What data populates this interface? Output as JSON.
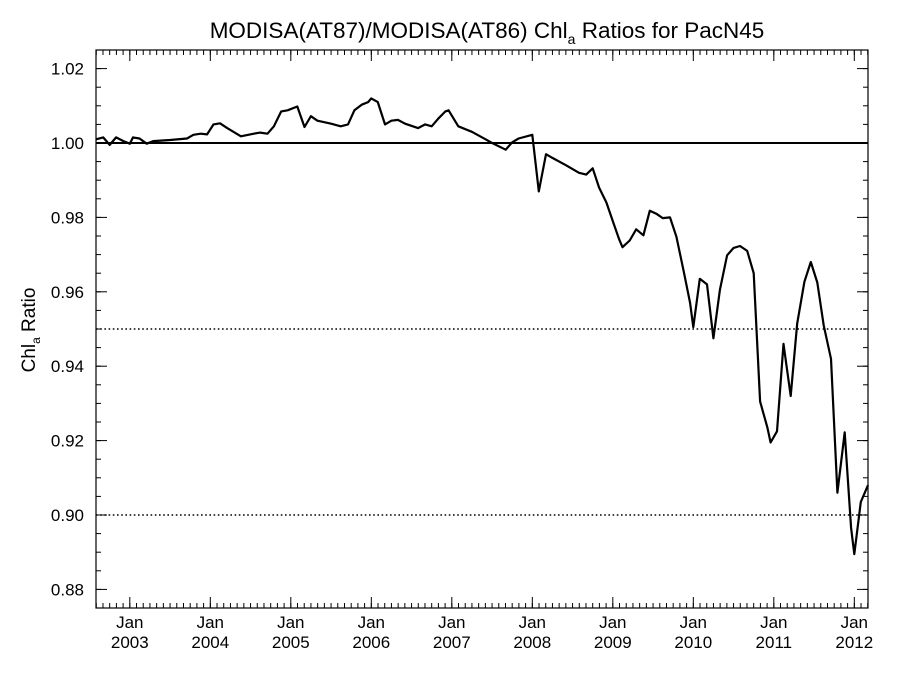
{
  "chart_data": {
    "type": "line",
    "title_main": "MODISA(AT87)/MODISA(AT86)  Chl",
    "title_sub": "a",
    "title_rest": " Ratios for PacN45",
    "ylabel_main": "Chl",
    "ylabel_sub": "a",
    "ylabel_rest": " Ratio",
    "xlim": [
      2002.58,
      2012.17
    ],
    "ylim": [
      0.875,
      1.025
    ],
    "yticks": [
      {
        "v": 0.88,
        "label": "0.88"
      },
      {
        "v": 0.9,
        "label": "0.90"
      },
      {
        "v": 0.92,
        "label": "0.92"
      },
      {
        "v": 0.94,
        "label": "0.94"
      },
      {
        "v": 0.96,
        "label": "0.96"
      },
      {
        "v": 0.98,
        "label": "0.98"
      },
      {
        "v": 1.0,
        "label": "1.00"
      },
      {
        "v": 1.02,
        "label": "1.02"
      }
    ],
    "xticks": [
      {
        "v": 2003,
        "month": "Jan",
        "year": "2003"
      },
      {
        "v": 2004,
        "month": "Jan",
        "year": "2004"
      },
      {
        "v": 2005,
        "month": "Jan",
        "year": "2005"
      },
      {
        "v": 2006,
        "month": "Jan",
        "year": "2006"
      },
      {
        "v": 2007,
        "month": "Jan",
        "year": "2007"
      },
      {
        "v": 2008,
        "month": "Jan",
        "year": "2008"
      },
      {
        "v": 2009,
        "month": "Jan",
        "year": "2009"
      },
      {
        "v": 2010,
        "month": "Jan",
        "year": "2010"
      },
      {
        "v": 2011,
        "month": "Jan",
        "year": "2011"
      },
      {
        "v": 2012,
        "month": "Jan",
        "year": "2012"
      }
    ],
    "reference_lines": [
      {
        "y": 1.0,
        "style": "solid"
      },
      {
        "y": 0.95,
        "style": "dotted"
      },
      {
        "y": 0.9,
        "style": "dotted"
      }
    ],
    "series": [
      {
        "points": [
          [
            2002.58,
            1.001
          ],
          [
            2002.67,
            1.0015
          ],
          [
            2002.75,
            0.9995
          ],
          [
            2002.83,
            1.0015
          ],
          [
            2002.92,
            1.0005
          ],
          [
            2003.0,
            0.9998
          ],
          [
            2003.04,
            1.0015
          ],
          [
            2003.12,
            1.0012
          ],
          [
            2003.21,
            0.9998
          ],
          [
            2003.29,
            1.0005
          ],
          [
            2003.5,
            1.0008
          ],
          [
            2003.71,
            1.0012
          ],
          [
            2003.79,
            1.0022
          ],
          [
            2003.88,
            1.0025
          ],
          [
            2003.96,
            1.0023
          ],
          [
            2004.04,
            1.005
          ],
          [
            2004.12,
            1.0053
          ],
          [
            2004.21,
            1.004
          ],
          [
            2004.38,
            1.0018
          ],
          [
            2004.54,
            1.0025
          ],
          [
            2004.62,
            1.0028
          ],
          [
            2004.71,
            1.0025
          ],
          [
            2004.79,
            1.0045
          ],
          [
            2004.88,
            1.0085
          ],
          [
            2004.96,
            1.0088
          ],
          [
            2005.08,
            1.0098
          ],
          [
            2005.17,
            1.0043
          ],
          [
            2005.25,
            1.0072
          ],
          [
            2005.33,
            1.006
          ],
          [
            2005.5,
            1.0052
          ],
          [
            2005.62,
            1.0045
          ],
          [
            2005.71,
            1.005
          ],
          [
            2005.79,
            1.0088
          ],
          [
            2005.88,
            1.0103
          ],
          [
            2005.96,
            1.011
          ],
          [
            2006.0,
            1.012
          ],
          [
            2006.08,
            1.011
          ],
          [
            2006.17,
            1.005
          ],
          [
            2006.25,
            1.006
          ],
          [
            2006.33,
            1.0062
          ],
          [
            2006.42,
            1.0052
          ],
          [
            2006.58,
            1.004
          ],
          [
            2006.67,
            1.005
          ],
          [
            2006.75,
            1.0045
          ],
          [
            2006.83,
            1.0065
          ],
          [
            2006.92,
            1.0085
          ],
          [
            2006.96,
            1.0088
          ],
          [
            2007.08,
            1.0045
          ],
          [
            2007.25,
            1.003
          ],
          [
            2007.42,
            1.001
          ],
          [
            2007.5,
            1.0
          ],
          [
            2007.67,
            0.9982
          ],
          [
            2007.75,
            1.0002
          ],
          [
            2007.83,
            1.0012
          ],
          [
            2008.0,
            1.0022
          ],
          [
            2008.08,
            0.987
          ],
          [
            2008.17,
            0.997
          ],
          [
            2008.25,
            0.996
          ],
          [
            2008.42,
            0.994
          ],
          [
            2008.58,
            0.992
          ],
          [
            2008.67,
            0.9915
          ],
          [
            2008.75,
            0.9932
          ],
          [
            2008.83,
            0.988
          ],
          [
            2008.92,
            0.984
          ],
          [
            2009.0,
            0.979
          ],
          [
            2009.08,
            0.974
          ],
          [
            2009.12,
            0.972
          ],
          [
            2009.21,
            0.9738
          ],
          [
            2009.29,
            0.9768
          ],
          [
            2009.38,
            0.9752
          ],
          [
            2009.46,
            0.9818
          ],
          [
            2009.54,
            0.981
          ],
          [
            2009.62,
            0.9798
          ],
          [
            2009.71,
            0.98
          ],
          [
            2009.79,
            0.9748
          ],
          [
            2009.88,
            0.9655
          ],
          [
            2009.96,
            0.957
          ],
          [
            2010.0,
            0.9505
          ],
          [
            2010.08,
            0.9635
          ],
          [
            2010.17,
            0.962
          ],
          [
            2010.25,
            0.9475
          ],
          [
            2010.33,
            0.9605
          ],
          [
            2010.42,
            0.9698
          ],
          [
            2010.5,
            0.9718
          ],
          [
            2010.58,
            0.9723
          ],
          [
            2010.67,
            0.971
          ],
          [
            2010.75,
            0.965
          ],
          [
            2010.83,
            0.9305
          ],
          [
            2010.92,
            0.9235
          ],
          [
            2010.96,
            0.9195
          ],
          [
            2011.04,
            0.9225
          ],
          [
            2011.12,
            0.946
          ],
          [
            2011.21,
            0.932
          ],
          [
            2011.29,
            0.9515
          ],
          [
            2011.38,
            0.9627
          ],
          [
            2011.46,
            0.968
          ],
          [
            2011.54,
            0.9625
          ],
          [
            2011.62,
            0.951
          ],
          [
            2011.71,
            0.942
          ],
          [
            2011.79,
            0.906
          ],
          [
            2011.88,
            0.9222
          ],
          [
            2011.96,
            0.8965
          ],
          [
            2012.0,
            0.8895
          ],
          [
            2012.08,
            0.9035
          ],
          [
            2012.17,
            0.908
          ]
        ]
      }
    ]
  }
}
